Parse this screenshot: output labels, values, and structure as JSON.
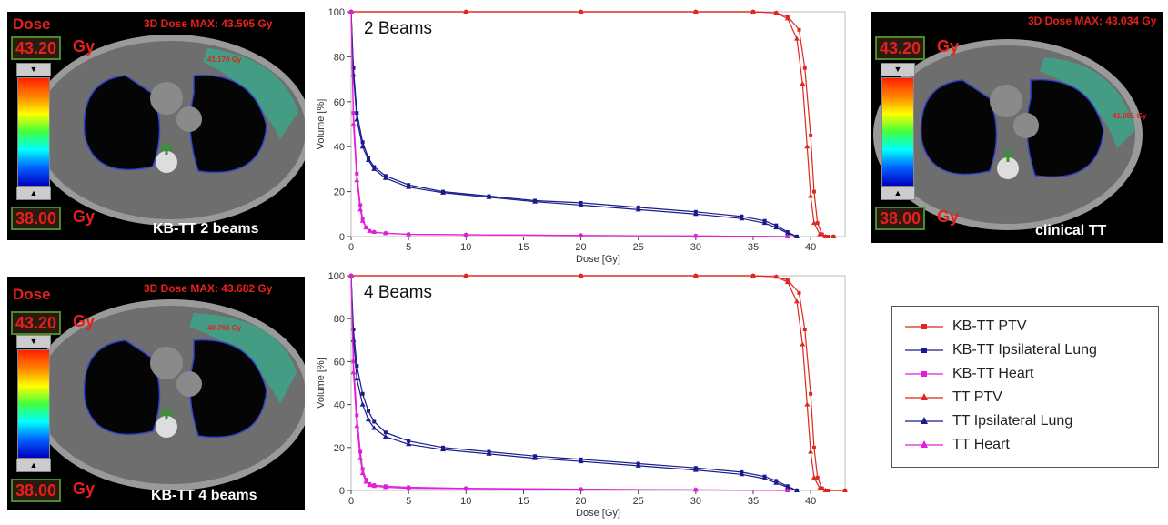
{
  "panels": [
    {
      "dose_title": "Dose",
      "max_label": "3D Dose MAX: 43.595 Gy",
      "upper_value": "43.20",
      "upper_unit": "Gy",
      "lower_value": "38.00",
      "lower_unit": "Gy",
      "point_label": "41.170 Gy",
      "caption": "KB-TT 2 beams"
    },
    {
      "dose_title": "Dose",
      "max_label": "3D Dose MAX: 43.034 Gy",
      "upper_value": "43.20",
      "upper_unit": "Gy",
      "lower_value": "38.00",
      "lower_unit": "Gy",
      "point_label": "41.051 Gy",
      "caption": "clinical TT"
    },
    {
      "dose_title": "Dose",
      "max_label": "3D Dose MAX: 43.682 Gy",
      "upper_value": "43.20",
      "upper_unit": "Gy",
      "lower_value": "38.00",
      "lower_unit": "Gy",
      "point_label": "40.760 Gy",
      "caption": "KB-TT 4 beams"
    }
  ],
  "legend": [
    {
      "label": "KB-TT PTV",
      "color": "#e0261f",
      "marker": "square"
    },
    {
      "label": "KB-TT Ipsilateral Lung",
      "color": "#1a1a8c",
      "marker": "square"
    },
    {
      "label": "KB-TT Heart",
      "color": "#e020d8",
      "marker": "square"
    },
    {
      "label": "TT PTV",
      "color": "#e0261f",
      "marker": "triangle"
    },
    {
      "label": "TT Ipsilateral Lung",
      "color": "#1a1a8c",
      "marker": "triangle"
    },
    {
      "label": "TT Heart",
      "color": "#e020d8",
      "marker": "triangle"
    }
  ],
  "chart_data": [
    {
      "type": "line",
      "title": "2 Beams",
      "xlabel": "Dose [Gy]",
      "ylabel": "Volume [%]",
      "xlim": [
        0,
        43
      ],
      "ylim": [
        0,
        100
      ],
      "xticks": [
        0,
        5,
        10,
        15,
        20,
        25,
        30,
        35,
        40
      ],
      "yticks": [
        0,
        20,
        40,
        60,
        80,
        100
      ],
      "series": [
        {
          "name": "KB-TT PTV",
          "color": "#e0261f",
          "marker": "square",
          "x": [
            0,
            10,
            20,
            30,
            35,
            37,
            38,
            39,
            39.5,
            40,
            40.3,
            40.6,
            41,
            41.5,
            42
          ],
          "y": [
            100,
            100,
            100,
            100,
            100,
            99.5,
            98,
            92,
            75,
            45,
            20,
            6,
            1,
            0,
            0
          ]
        },
        {
          "name": "KB-TT Ipsilateral Lung",
          "color": "#1a1a8c",
          "marker": "square",
          "x": [
            0,
            0.2,
            0.5,
            1,
            1.5,
            2,
            3,
            5,
            8,
            12,
            16,
            20,
            25,
            30,
            34,
            36,
            37,
            38,
            38.8
          ],
          "y": [
            100,
            75,
            55,
            42,
            35,
            31,
            27,
            23,
            20,
            18,
            16,
            15,
            13,
            11,
            9,
            7,
            5,
            2,
            0
          ]
        },
        {
          "name": "KB-TT Heart",
          "color": "#e020d8",
          "marker": "square",
          "x": [
            0,
            0.2,
            0.5,
            0.8,
            1,
            1.3,
            1.6,
            2,
            3,
            5,
            10,
            20,
            30,
            38
          ],
          "y": [
            100,
            55,
            28,
            14,
            8,
            4,
            2.5,
            2,
            1.5,
            1,
            0.8,
            0.5,
            0.3,
            0
          ]
        },
        {
          "name": "TT PTV",
          "color": "#e0261f",
          "marker": "triangle",
          "x": [
            0,
            10,
            20,
            30,
            35,
            37,
            38,
            38.8,
            39.3,
            39.7,
            40,
            40.3,
            40.8,
            41.3,
            42
          ],
          "y": [
            100,
            100,
            100,
            100,
            100,
            99.5,
            97,
            88,
            68,
            40,
            18,
            6,
            1,
            0,
            0
          ]
        },
        {
          "name": "TT Ipsilateral Lung",
          "color": "#1a1a8c",
          "marker": "triangle",
          "x": [
            0,
            0.2,
            0.5,
            1,
            1.5,
            2,
            3,
            5,
            8,
            12,
            16,
            20,
            25,
            30,
            34,
            36,
            37,
            38,
            38.8
          ],
          "y": [
            100,
            72,
            52,
            40,
            34,
            30,
            26,
            22,
            19.5,
            17.5,
            15.5,
            14,
            12,
            10,
            8,
            6,
            4,
            1.5,
            0
          ]
        },
        {
          "name": "TT Heart",
          "color": "#e020d8",
          "marker": "triangle",
          "x": [
            0,
            0.2,
            0.5,
            0.8,
            1,
            1.3,
            1.6,
            2,
            3,
            5,
            10,
            20,
            30,
            38
          ],
          "y": [
            100,
            50,
            25,
            12,
            7,
            4,
            2.5,
            2,
            1.5,
            1,
            0.8,
            0.5,
            0.3,
            0
          ]
        }
      ]
    },
    {
      "type": "line",
      "title": "4 Beams",
      "xlabel": "Dose [Gy]",
      "ylabel": "Volume [%]",
      "xlim": [
        0,
        43
      ],
      "ylim": [
        0,
        100
      ],
      "xticks": [
        0,
        5,
        10,
        15,
        20,
        25,
        30,
        35,
        40
      ],
      "yticks": [
        0,
        20,
        40,
        60,
        80,
        100
      ],
      "series": [
        {
          "name": "KB-TT PTV",
          "color": "#e0261f",
          "marker": "square",
          "x": [
            0,
            10,
            20,
            30,
            35,
            37,
            38,
            39,
            39.5,
            40,
            40.3,
            40.6,
            41,
            41.5,
            43
          ],
          "y": [
            100,
            100,
            100,
            100,
            100,
            99.5,
            98,
            92,
            75,
            45,
            20,
            6,
            1,
            0,
            0
          ]
        },
        {
          "name": "KB-TT Ipsilateral Lung",
          "color": "#1a1a8c",
          "marker": "square",
          "x": [
            0,
            0.2,
            0.5,
            1,
            1.5,
            2,
            3,
            5,
            8,
            12,
            16,
            20,
            25,
            30,
            34,
            36,
            37,
            38,
            38.8
          ],
          "y": [
            100,
            75,
            58,
            45,
            37,
            32,
            27,
            23,
            20,
            18,
            16,
            14.5,
            12.5,
            10.5,
            8.5,
            6.5,
            4.5,
            2,
            0
          ]
        },
        {
          "name": "KB-TT Heart",
          "color": "#e020d8",
          "marker": "square",
          "x": [
            0,
            0.2,
            0.5,
            0.8,
            1,
            1.3,
            1.6,
            2,
            3,
            5,
            10,
            20,
            30,
            38
          ],
          "y": [
            100,
            60,
            35,
            18,
            10,
            5,
            3,
            2.5,
            2,
            1.5,
            1,
            0.6,
            0.3,
            0
          ]
        },
        {
          "name": "TT PTV",
          "color": "#e0261f",
          "marker": "triangle",
          "x": [
            0,
            10,
            20,
            30,
            35,
            37,
            38,
            38.8,
            39.3,
            39.7,
            40,
            40.3,
            40.8,
            41.3,
            43
          ],
          "y": [
            100,
            100,
            100,
            100,
            100,
            99.5,
            97,
            88,
            68,
            40,
            18,
            6,
            1,
            0,
            0
          ]
        },
        {
          "name": "TT Ipsilateral Lung",
          "color": "#1a1a8c",
          "marker": "triangle",
          "x": [
            0,
            0.2,
            0.5,
            1,
            1.5,
            2,
            3,
            5,
            8,
            12,
            16,
            20,
            25,
            30,
            34,
            36,
            37,
            38,
            38.8
          ],
          "y": [
            100,
            70,
            52,
            40,
            33,
            29,
            25,
            21.5,
            19,
            17,
            15,
            13.5,
            11.5,
            9.5,
            7.5,
            5.5,
            3.5,
            1.5,
            0
          ]
        },
        {
          "name": "TT Heart",
          "color": "#e020d8",
          "marker": "triangle",
          "x": [
            0,
            0.2,
            0.5,
            0.8,
            1,
            1.3,
            1.6,
            2,
            3,
            5,
            10,
            20,
            30,
            38
          ],
          "y": [
            100,
            55,
            30,
            15,
            8,
            4,
            2.5,
            2,
            1.5,
            1,
            0.8,
            0.5,
            0.3,
            0
          ]
        }
      ]
    }
  ]
}
